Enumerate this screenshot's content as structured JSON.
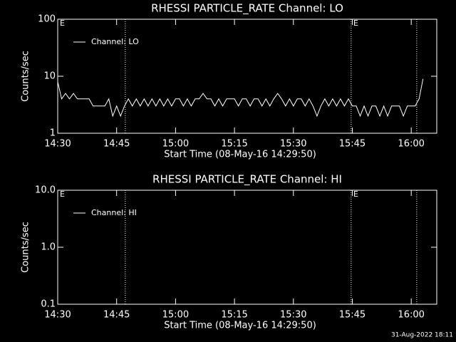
{
  "chart_data": [
    {
      "type": "line",
      "title": "RHESSI PARTICLE_RATE Channel: LO",
      "y_label": "Counts/sec",
      "x_label": "Start Time (08-May-16 14:29:50)",
      "log_y": true,
      "ylim": [
        1,
        100
      ],
      "yticks": [
        1,
        10,
        100
      ],
      "xlim": [
        0,
        96.5
      ],
      "xticks": [
        {
          "value": 0,
          "label": "14:30"
        },
        {
          "value": 15,
          "label": "14:45"
        },
        {
          "value": 30,
          "label": "15:00"
        },
        {
          "value": 45,
          "label": "15:15"
        },
        {
          "value": 60,
          "label": "15:30"
        },
        {
          "value": 75,
          "label": "15:45"
        },
        {
          "value": 90,
          "label": "16:00"
        }
      ],
      "event_lines": [
        17.2,
        74.7,
        91.4
      ],
      "annotations": [
        "E",
        "E"
      ],
      "legend": "upper left",
      "x": [
        0,
        1,
        2,
        3,
        4,
        5,
        6,
        7,
        8,
        9,
        10,
        11,
        12,
        13,
        14,
        15,
        16,
        17,
        18,
        19,
        20,
        21,
        22,
        23,
        24,
        25,
        26,
        27,
        28,
        29,
        30,
        31,
        32,
        33,
        34,
        35,
        36,
        37,
        38,
        39,
        40,
        41,
        42,
        43,
        44,
        45,
        46,
        47,
        48,
        49,
        50,
        51,
        52,
        53,
        54,
        55,
        56,
        57,
        58,
        59,
        60,
        61,
        62,
        63,
        64,
        65,
        66,
        67,
        68,
        69,
        70,
        71,
        72,
        73,
        74,
        75,
        76,
        77,
        78,
        79,
        80,
        81,
        82,
        83,
        84,
        85,
        86,
        87,
        88,
        89,
        90,
        91,
        92,
        93
      ],
      "series": [
        {
          "name": "Channel: LO",
          "color": "#ffffff",
          "values": [
            8,
            4,
            5,
            4,
            5,
            4,
            4,
            4,
            4,
            3,
            3,
            3,
            3,
            4,
            2,
            3,
            2,
            3,
            4,
            3,
            4,
            3,
            4,
            3,
            4,
            3,
            4,
            3,
            4,
            3,
            4,
            4,
            3,
            4,
            3,
            4,
            4,
            5,
            4,
            4,
            3,
            4,
            3,
            4,
            4,
            4,
            3,
            4,
            4,
            3,
            4,
            4,
            3,
            4,
            3,
            4,
            5,
            4,
            3,
            4,
            3,
            4,
            4,
            3,
            4,
            3,
            2,
            3,
            4,
            3,
            4,
            3,
            4,
            3,
            4,
            3,
            3,
            2,
            3,
            2,
            3,
            3,
            2,
            3,
            2,
            3,
            3,
            3,
            2,
            3,
            3,
            3,
            4,
            9
          ]
        }
      ]
    },
    {
      "type": "line",
      "title": "RHESSI PARTICLE_RATE Channel: HI",
      "y_label": "Counts/sec",
      "x_label": "Start Time (08-May-16 14:29:50)",
      "log_y": true,
      "ylim": [
        0.1,
        10
      ],
      "yticks": [
        0.1,
        {
          "value": 1,
          "label": "1.0"
        },
        {
          "value": 10,
          "label": "10.0"
        }
      ],
      "xlim": [
        0,
        96.5
      ],
      "xticks": [
        {
          "value": 0,
          "label": "14:30"
        },
        {
          "value": 15,
          "label": "14:45"
        },
        {
          "value": 30,
          "label": "15:00"
        },
        {
          "value": 45,
          "label": "15:15"
        },
        {
          "value": 60,
          "label": "15:30"
        },
        {
          "value": 75,
          "label": "15:45"
        },
        {
          "value": 90,
          "label": "16:00"
        }
      ],
      "event_lines": [
        17.2,
        74.7,
        91.4
      ],
      "annotations": [
        "E",
        "E"
      ],
      "legend": "upper left",
      "x": [],
      "series": [
        {
          "name": "Channel: HI",
          "color": "#ffffff",
          "values": []
        }
      ]
    }
  ],
  "footer": "31-Aug-2022 18:11"
}
